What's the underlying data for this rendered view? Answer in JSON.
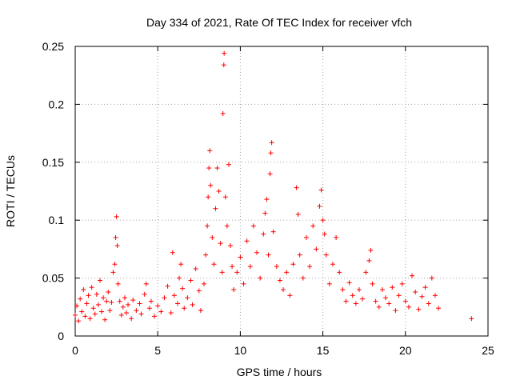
{
  "chart_data": {
    "type": "scatter",
    "title": "Day 334 of 2021, Rate Of TEC Index for receiver vfch",
    "xlabel": "GPS time / hours",
    "ylabel": "ROTI / TECUs",
    "xlim": [
      0,
      25
    ],
    "ylim": [
      0,
      0.25
    ],
    "x_ticks": [
      0,
      5,
      10,
      15,
      20,
      25
    ],
    "x_tick_labels": [
      "0",
      "5",
      "10",
      "15",
      "20",
      "25"
    ],
    "y_ticks": [
      0,
      0.05,
      0.1,
      0.15,
      0.2,
      0.25
    ],
    "y_tick_labels": [
      "0",
      "0.05",
      "0.1",
      "0.15",
      "0.2",
      "0.25"
    ],
    "grid": true,
    "marker": "+",
    "color": "#ff0000",
    "series": [
      {
        "points": [
          [
            0.0,
            0.018
          ],
          [
            0.1,
            0.026
          ],
          [
            0.2,
            0.013
          ],
          [
            0.3,
            0.032
          ],
          [
            0.4,
            0.021
          ],
          [
            0.5,
            0.04
          ],
          [
            0.6,
            0.017
          ],
          [
            0.7,
            0.028
          ],
          [
            0.8,
            0.035
          ],
          [
            0.9,
            0.015
          ],
          [
            1.0,
            0.042
          ],
          [
            1.1,
            0.024
          ],
          [
            1.2,
            0.019
          ],
          [
            1.3,
            0.036
          ],
          [
            1.4,
            0.027
          ],
          [
            1.5,
            0.048
          ],
          [
            1.6,
            0.021
          ],
          [
            1.7,
            0.033
          ],
          [
            1.8,
            0.014
          ],
          [
            1.9,
            0.03
          ],
          [
            2.0,
            0.038
          ],
          [
            2.1,
            0.022
          ],
          [
            2.2,
            0.029
          ],
          [
            2.3,
            0.055
          ],
          [
            2.4,
            0.062
          ],
          [
            2.45,
            0.085
          ],
          [
            2.5,
            0.103
          ],
          [
            2.55,
            0.078
          ],
          [
            2.6,
            0.045
          ],
          [
            2.7,
            0.03
          ],
          [
            2.8,
            0.018
          ],
          [
            2.9,
            0.025
          ],
          [
            3.0,
            0.033
          ],
          [
            3.1,
            0.02
          ],
          [
            3.2,
            0.027
          ],
          [
            3.4,
            0.015
          ],
          [
            3.5,
            0.031
          ],
          [
            3.7,
            0.022
          ],
          [
            3.9,
            0.028
          ],
          [
            4.0,
            0.019
          ],
          [
            4.2,
            0.036
          ],
          [
            4.3,
            0.045
          ],
          [
            4.5,
            0.024
          ],
          [
            4.6,
            0.03
          ],
          [
            4.8,
            0.017
          ],
          [
            5.0,
            0.026
          ],
          [
            5.2,
            0.021
          ],
          [
            5.4,
            0.033
          ],
          [
            5.6,
            0.043
          ],
          [
            5.8,
            0.02
          ],
          [
            5.9,
            0.072
          ],
          [
            6.0,
            0.035
          ],
          [
            6.2,
            0.028
          ],
          [
            6.3,
            0.05
          ],
          [
            6.4,
            0.062
          ],
          [
            6.5,
            0.041
          ],
          [
            6.6,
            0.024
          ],
          [
            6.8,
            0.033
          ],
          [
            7.0,
            0.048
          ],
          [
            7.1,
            0.027
          ],
          [
            7.3,
            0.058
          ],
          [
            7.5,
            0.039
          ],
          [
            7.6,
            0.022
          ],
          [
            7.8,
            0.045
          ],
          [
            7.9,
            0.07
          ],
          [
            8.0,
            0.095
          ],
          [
            8.05,
            0.12
          ],
          [
            8.1,
            0.145
          ],
          [
            8.15,
            0.16
          ],
          [
            8.2,
            0.13
          ],
          [
            8.3,
            0.085
          ],
          [
            8.4,
            0.062
          ],
          [
            8.5,
            0.11
          ],
          [
            8.6,
            0.145
          ],
          [
            8.7,
            0.125
          ],
          [
            8.8,
            0.08
          ],
          [
            8.9,
            0.055
          ],
          [
            8.95,
            0.192
          ],
          [
            9.0,
            0.234
          ],
          [
            9.02,
            0.244
          ],
          [
            9.1,
            0.12
          ],
          [
            9.2,
            0.095
          ],
          [
            9.3,
            0.148
          ],
          [
            9.4,
            0.078
          ],
          [
            9.5,
            0.06
          ],
          [
            9.6,
            0.04
          ],
          [
            9.8,
            0.055
          ],
          [
            10.0,
            0.068
          ],
          [
            10.2,
            0.045
          ],
          [
            10.4,
            0.082
          ],
          [
            10.6,
            0.06
          ],
          [
            10.8,
            0.095
          ],
          [
            11.0,
            0.072
          ],
          [
            11.2,
            0.05
          ],
          [
            11.4,
            0.088
          ],
          [
            11.5,
            0.106
          ],
          [
            11.6,
            0.118
          ],
          [
            11.7,
            0.07
          ],
          [
            11.8,
            0.14
          ],
          [
            11.85,
            0.158
          ],
          [
            11.9,
            0.167
          ],
          [
            12.0,
            0.09
          ],
          [
            12.2,
            0.06
          ],
          [
            12.4,
            0.048
          ],
          [
            12.6,
            0.04
          ],
          [
            12.8,
            0.055
          ],
          [
            13.0,
            0.035
          ],
          [
            13.2,
            0.062
          ],
          [
            13.4,
            0.128
          ],
          [
            13.5,
            0.105
          ],
          [
            13.6,
            0.07
          ],
          [
            13.8,
            0.05
          ],
          [
            14.0,
            0.085
          ],
          [
            14.2,
            0.06
          ],
          [
            14.4,
            0.095
          ],
          [
            14.6,
            0.075
          ],
          [
            14.8,
            0.112
          ],
          [
            14.9,
            0.126
          ],
          [
            15.0,
            0.1
          ],
          [
            15.1,
            0.088
          ],
          [
            15.2,
            0.07
          ],
          [
            15.4,
            0.045
          ],
          [
            15.6,
            0.062
          ],
          [
            15.8,
            0.085
          ],
          [
            16.0,
            0.055
          ],
          [
            16.2,
            0.04
          ],
          [
            16.4,
            0.03
          ],
          [
            16.6,
            0.046
          ],
          [
            16.8,
            0.035
          ],
          [
            17.0,
            0.028
          ],
          [
            17.2,
            0.04
          ],
          [
            17.4,
            0.032
          ],
          [
            17.6,
            0.055
          ],
          [
            17.8,
            0.065
          ],
          [
            17.9,
            0.074
          ],
          [
            18.0,
            0.045
          ],
          [
            18.2,
            0.03
          ],
          [
            18.4,
            0.025
          ],
          [
            18.6,
            0.04
          ],
          [
            18.8,
            0.033
          ],
          [
            19.0,
            0.028
          ],
          [
            19.2,
            0.042
          ],
          [
            19.4,
            0.022
          ],
          [
            19.6,
            0.035
          ],
          [
            19.8,
            0.045
          ],
          [
            20.0,
            0.03
          ],
          [
            20.2,
            0.025
          ],
          [
            20.4,
            0.052
          ],
          [
            20.6,
            0.038
          ],
          [
            20.8,
            0.023
          ],
          [
            21.0,
            0.034
          ],
          [
            21.2,
            0.042
          ],
          [
            21.4,
            0.028
          ],
          [
            21.6,
            0.05
          ],
          [
            21.8,
            0.035
          ],
          [
            22.0,
            0.024
          ],
          [
            24.0,
            0.015
          ]
        ]
      }
    ]
  }
}
